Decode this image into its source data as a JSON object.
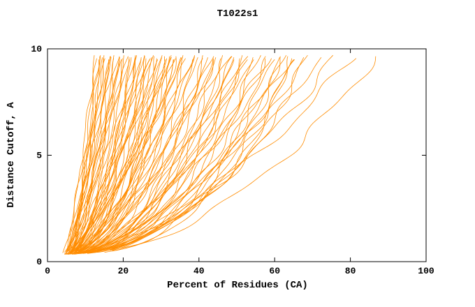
{
  "chart_data": {
    "type": "line",
    "title": "T1022s1",
    "xlabel": "Percent of Residues (CA)",
    "ylabel": "Distance Cutoff, A",
    "xlim": [
      0,
      100
    ],
    "ylim": [
      0,
      10
    ],
    "xticks": [
      0,
      20,
      40,
      60,
      80,
      100
    ],
    "yticks": [
      0,
      5,
      10
    ],
    "grid": false,
    "legend": "none",
    "background": "#ffffff",
    "axis_color": "#000000",
    "line_color": "#ff8c00",
    "y_range": [
      0.35,
      9.7
    ],
    "curve_model": "Each model accuracy curve = [x0, xtop, p]; x(y) = x0 + (xtop - x0) * ((y - 0.35)/(9.7 - 0.35))^p, y = distance cutoff (A), x = percent of residues (CA). Curves fan from ~4-7% at cutoff ~0.4A up to 12-87% at cutoff ~9.7A.",
    "curves": [
      [
        4.5,
        12.5,
        0.75
      ],
      [
        5.0,
        13.0,
        0.6
      ],
      [
        4.2,
        13.5,
        0.8
      ],
      [
        5.5,
        14.0,
        0.55
      ],
      [
        4.8,
        14.5,
        0.7
      ],
      [
        5.2,
        15.0,
        0.65
      ],
      [
        4.4,
        15.5,
        0.8
      ],
      [
        5.8,
        16.0,
        0.5
      ],
      [
        4.6,
        16.5,
        0.72
      ],
      [
        5.1,
        17.0,
        0.6
      ],
      [
        4.3,
        17.5,
        0.78
      ],
      [
        5.6,
        18.0,
        0.55
      ],
      [
        4.9,
        18.5,
        0.68
      ],
      [
        5.3,
        19.0,
        0.62
      ],
      [
        4.5,
        19.5,
        0.75
      ],
      [
        5.7,
        20.0,
        0.52
      ],
      [
        4.7,
        20.5,
        0.7
      ],
      [
        5.2,
        21.0,
        0.6
      ],
      [
        4.4,
        21.5,
        0.77
      ],
      [
        5.9,
        22.0,
        0.5
      ],
      [
        6.2,
        13.8,
        0.85
      ],
      [
        6.0,
        15.2,
        0.9
      ],
      [
        5.4,
        16.8,
        0.85
      ],
      [
        6.1,
        19.2,
        0.8
      ],
      [
        4.5,
        22.5,
        0.6
      ],
      [
        5.0,
        23.0,
        0.55
      ],
      [
        5.5,
        23.5,
        0.65
      ],
      [
        4.2,
        24.0,
        0.5
      ],
      [
        5.8,
        24.5,
        0.62
      ],
      [
        4.8,
        25.0,
        0.58
      ],
      [
        5.2,
        25.5,
        0.48
      ],
      [
        4.4,
        26.0,
        0.66
      ],
      [
        5.6,
        26.5,
        0.52
      ],
      [
        4.9,
        27.0,
        0.6
      ],
      [
        5.3,
        27.5,
        0.45
      ],
      [
        4.6,
        28.0,
        0.63
      ],
      [
        5.7,
        28.5,
        0.5
      ],
      [
        4.3,
        29.0,
        0.58
      ],
      [
        5.1,
        29.5,
        0.47
      ],
      [
        5.9,
        30.0,
        0.55
      ],
      [
        4.7,
        30.5,
        0.6
      ],
      [
        5.4,
        31.0,
        0.44
      ],
      [
        4.5,
        31.5,
        0.57
      ],
      [
        5.8,
        32.0,
        0.5
      ],
      [
        5.0,
        32.5,
        0.62
      ],
      [
        4.8,
        33.0,
        0.46
      ],
      [
        5.5,
        33.5,
        0.55
      ],
      [
        4.4,
        34.0,
        0.5
      ],
      [
        5.2,
        34.5,
        0.58
      ],
      [
        6.0,
        35.0,
        0.44
      ],
      [
        6.3,
        23.8,
        0.7
      ],
      [
        6.5,
        27.2,
        0.68
      ],
      [
        6.2,
        31.8,
        0.65
      ],
      [
        6.6,
        34.2,
        0.6
      ],
      [
        4.6,
        35.5,
        0.5
      ],
      [
        5.3,
        36.0,
        0.45
      ],
      [
        4.9,
        37.0,
        0.55
      ],
      [
        5.6,
        38.0,
        0.42
      ],
      [
        4.5,
        39.0,
        0.52
      ],
      [
        5.1,
        40.0,
        0.47
      ],
      [
        5.8,
        41.0,
        0.4
      ],
      [
        4.7,
        42.0,
        0.5
      ],
      [
        5.4,
        43.0,
        0.44
      ],
      [
        4.8,
        44.0,
        0.55
      ],
      [
        5.2,
        45.0,
        0.42
      ],
      [
        5.9,
        46.0,
        0.48
      ],
      [
        4.6,
        47.0,
        0.4
      ],
      [
        5.5,
        48.0,
        0.52
      ],
      [
        4.9,
        49.0,
        0.45
      ],
      [
        5.3,
        50.0,
        0.5
      ],
      [
        5.7,
        51.0,
        0.42
      ],
      [
        4.8,
        52.0,
        0.48
      ],
      [
        5.4,
        53.0,
        0.44
      ],
      [
        5.0,
        54.0,
        0.5
      ],
      [
        5.8,
        55.0,
        0.42
      ],
      [
        6.4,
        38.5,
        0.6
      ],
      [
        6.1,
        44.5,
        0.58
      ],
      [
        6.5,
        49.5,
        0.55
      ],
      [
        6.2,
        52.5,
        0.52
      ],
      [
        6.6,
        42.8,
        0.62
      ],
      [
        5.0,
        56.0,
        0.45
      ],
      [
        5.5,
        57.5,
        0.42
      ],
      [
        4.8,
        59.0,
        0.48
      ],
      [
        5.3,
        60.0,
        0.4
      ],
      [
        5.7,
        61.5,
        0.45
      ],
      [
        4.9,
        63.0,
        0.42
      ],
      [
        5.4,
        64.0,
        0.47
      ],
      [
        5.1,
        65.0,
        0.4
      ],
      [
        5.8,
        66.0,
        0.44
      ],
      [
        5.2,
        67.5,
        0.41
      ],
      [
        5.6,
        69.0,
        0.45
      ],
      [
        6.3,
        58.5,
        0.55
      ],
      [
        6.1,
        62.5,
        0.5
      ],
      [
        6.5,
        66.5,
        0.52
      ],
      [
        5.5,
        72.0,
        0.5
      ],
      [
        5.2,
        76.0,
        0.55
      ],
      [
        5.8,
        81.0,
        0.6
      ],
      [
        5.4,
        87.0,
        0.5
      ]
    ]
  }
}
